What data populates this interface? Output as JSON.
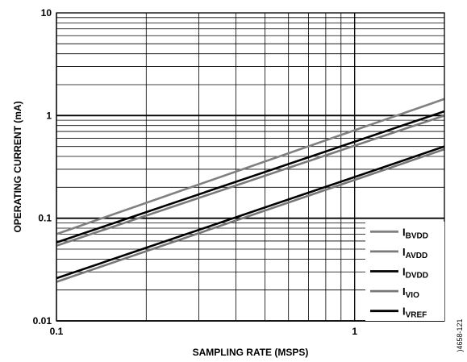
{
  "chart_data": {
    "type": "line",
    "xlabel": "SAMPLING RATE (MSPS)",
    "ylabel": "OPERATING CURRENT (mA)",
    "x_scale": "log",
    "y_scale": "log",
    "xlim": [
      0.1,
      2
    ],
    "ylim": [
      0.01,
      10
    ],
    "x_ticks": [
      {
        "value": 0.1,
        "label": "0.1"
      },
      {
        "value": 1,
        "label": "1"
      }
    ],
    "y_ticks": [
      {
        "value": 0.01,
        "label": "0.01"
      },
      {
        "value": 0.1,
        "label": "0.1"
      },
      {
        "value": 1,
        "label": "1"
      },
      {
        "value": 10,
        "label": "10"
      }
    ],
    "grid": true,
    "legend_position": "bottom-right",
    "series": [
      {
        "name": "BVDD",
        "label_main": "I",
        "label_sub": "BVDD",
        "color": "#808080",
        "width": 2.6,
        "x": [
          0.1,
          2
        ],
        "y": [
          0.07,
          1.45
        ]
      },
      {
        "name": "AVDD",
        "label_main": "I",
        "label_sub": "AVDD",
        "color": "#7a7a7a",
        "width": 2.6,
        "x": [
          0.1,
          2
        ],
        "y": [
          0.054,
          1.0
        ]
      },
      {
        "name": "DVDD",
        "label_main": "I",
        "label_sub": "DVDD",
        "color": "#000000",
        "width": 2.6,
        "x": [
          0.1,
          2
        ],
        "y": [
          0.058,
          1.1
        ]
      },
      {
        "name": "VIO",
        "label_main": "I",
        "label_sub": "VIO",
        "color": "#777777",
        "width": 2.6,
        "x": [
          0.1,
          2
        ],
        "y": [
          0.024,
          0.47
        ]
      },
      {
        "name": "VREF",
        "label_main": "I",
        "label_sub": "VREF",
        "color": "#000000",
        "width": 2.6,
        "x": [
          0.1,
          2
        ],
        "y": [
          0.026,
          0.5
        ]
      }
    ]
  },
  "figure_id": ")4658-121"
}
